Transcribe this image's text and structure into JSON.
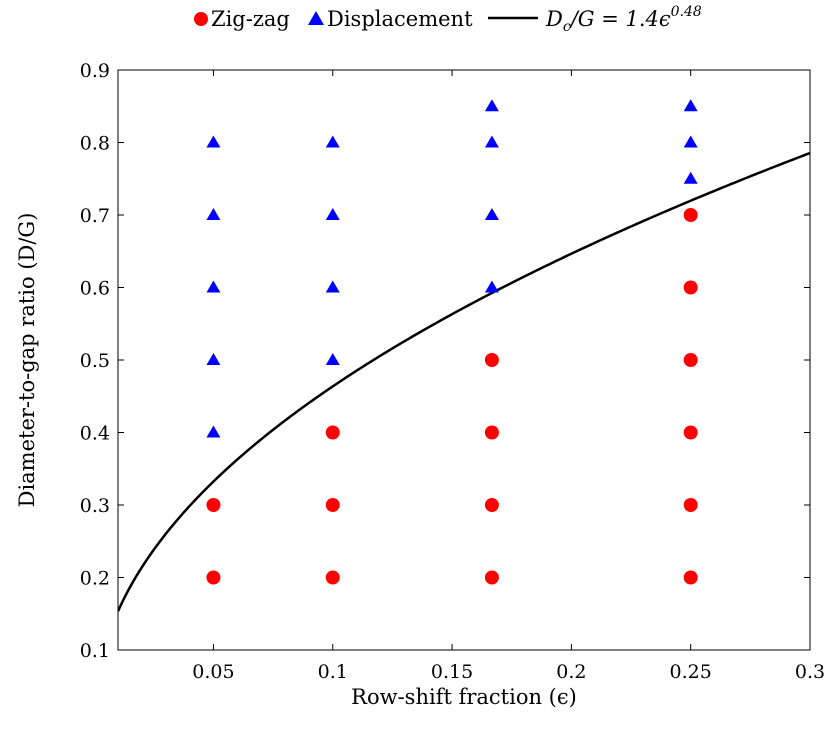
{
  "chart_data": {
    "type": "scatter",
    "title": "",
    "xlabel": "Row-shift fraction (ϵ)",
    "ylabel": "Diameter-to-gap ratio (D/G)",
    "xlim": [
      0.01,
      0.3
    ],
    "ylim": [
      0.1,
      0.9
    ],
    "x_ticks": [
      0.05,
      0.1,
      0.15,
      0.2,
      0.25,
      0.3
    ],
    "x_tick_labels": [
      "0.05",
      "0.1",
      "0.15",
      "0.2",
      "0.25",
      "0.3"
    ],
    "y_ticks": [
      0.1,
      0.2,
      0.3,
      0.4,
      0.5,
      0.6,
      0.7,
      0.8,
      0.9
    ],
    "y_tick_labels": [
      "0.1",
      "0.2",
      "0.3",
      "0.4",
      "0.5",
      "0.6",
      "0.7",
      "0.8",
      "0.9"
    ],
    "grid": false,
    "legend_position": "top-center",
    "series": [
      {
        "name": "Zig-zag",
        "marker": "circle",
        "color": "#ff0000",
        "points": [
          [
            0.05,
            0.2
          ],
          [
            0.05,
            0.3
          ],
          [
            0.1,
            0.2
          ],
          [
            0.1,
            0.3
          ],
          [
            0.1,
            0.4
          ],
          [
            0.1667,
            0.2
          ],
          [
            0.1667,
            0.3
          ],
          [
            0.1667,
            0.4
          ],
          [
            0.1667,
            0.5
          ],
          [
            0.25,
            0.2
          ],
          [
            0.25,
            0.3
          ],
          [
            0.25,
            0.4
          ],
          [
            0.25,
            0.5
          ],
          [
            0.25,
            0.6
          ],
          [
            0.25,
            0.7
          ]
        ]
      },
      {
        "name": "Displacement",
        "marker": "triangle",
        "color": "#0000ff",
        "points": [
          [
            0.05,
            0.4
          ],
          [
            0.05,
            0.5
          ],
          [
            0.05,
            0.6
          ],
          [
            0.05,
            0.7
          ],
          [
            0.05,
            0.8
          ],
          [
            0.1,
            0.5
          ],
          [
            0.1,
            0.6
          ],
          [
            0.1,
            0.7
          ],
          [
            0.1,
            0.8
          ],
          [
            0.1667,
            0.6
          ],
          [
            0.1667,
            0.7
          ],
          [
            0.1667,
            0.8
          ],
          [
            0.1667,
            0.85
          ],
          [
            0.25,
            0.75
          ],
          [
            0.25,
            0.8
          ],
          [
            0.25,
            0.85
          ]
        ]
      }
    ],
    "curve": {
      "name": "Dc/G = 1.4ϵ^0.48",
      "color": "#000000",
      "coefficient": 1.4,
      "exponent": 0.48,
      "x_range": [
        0.01,
        0.3
      ]
    }
  },
  "legend": {
    "zigzag_label": "Zig-zag",
    "displacement_label": "Displacement",
    "curve_label_lhs": "D",
    "curve_label_sub": "c",
    "curve_label_mid": "/G = 1.4ϵ",
    "curve_label_sup": "0.48"
  },
  "axes": {
    "x_label": "Row-shift fraction (ϵ)",
    "y_label": "Diameter-to-gap ratio (D/G)"
  }
}
